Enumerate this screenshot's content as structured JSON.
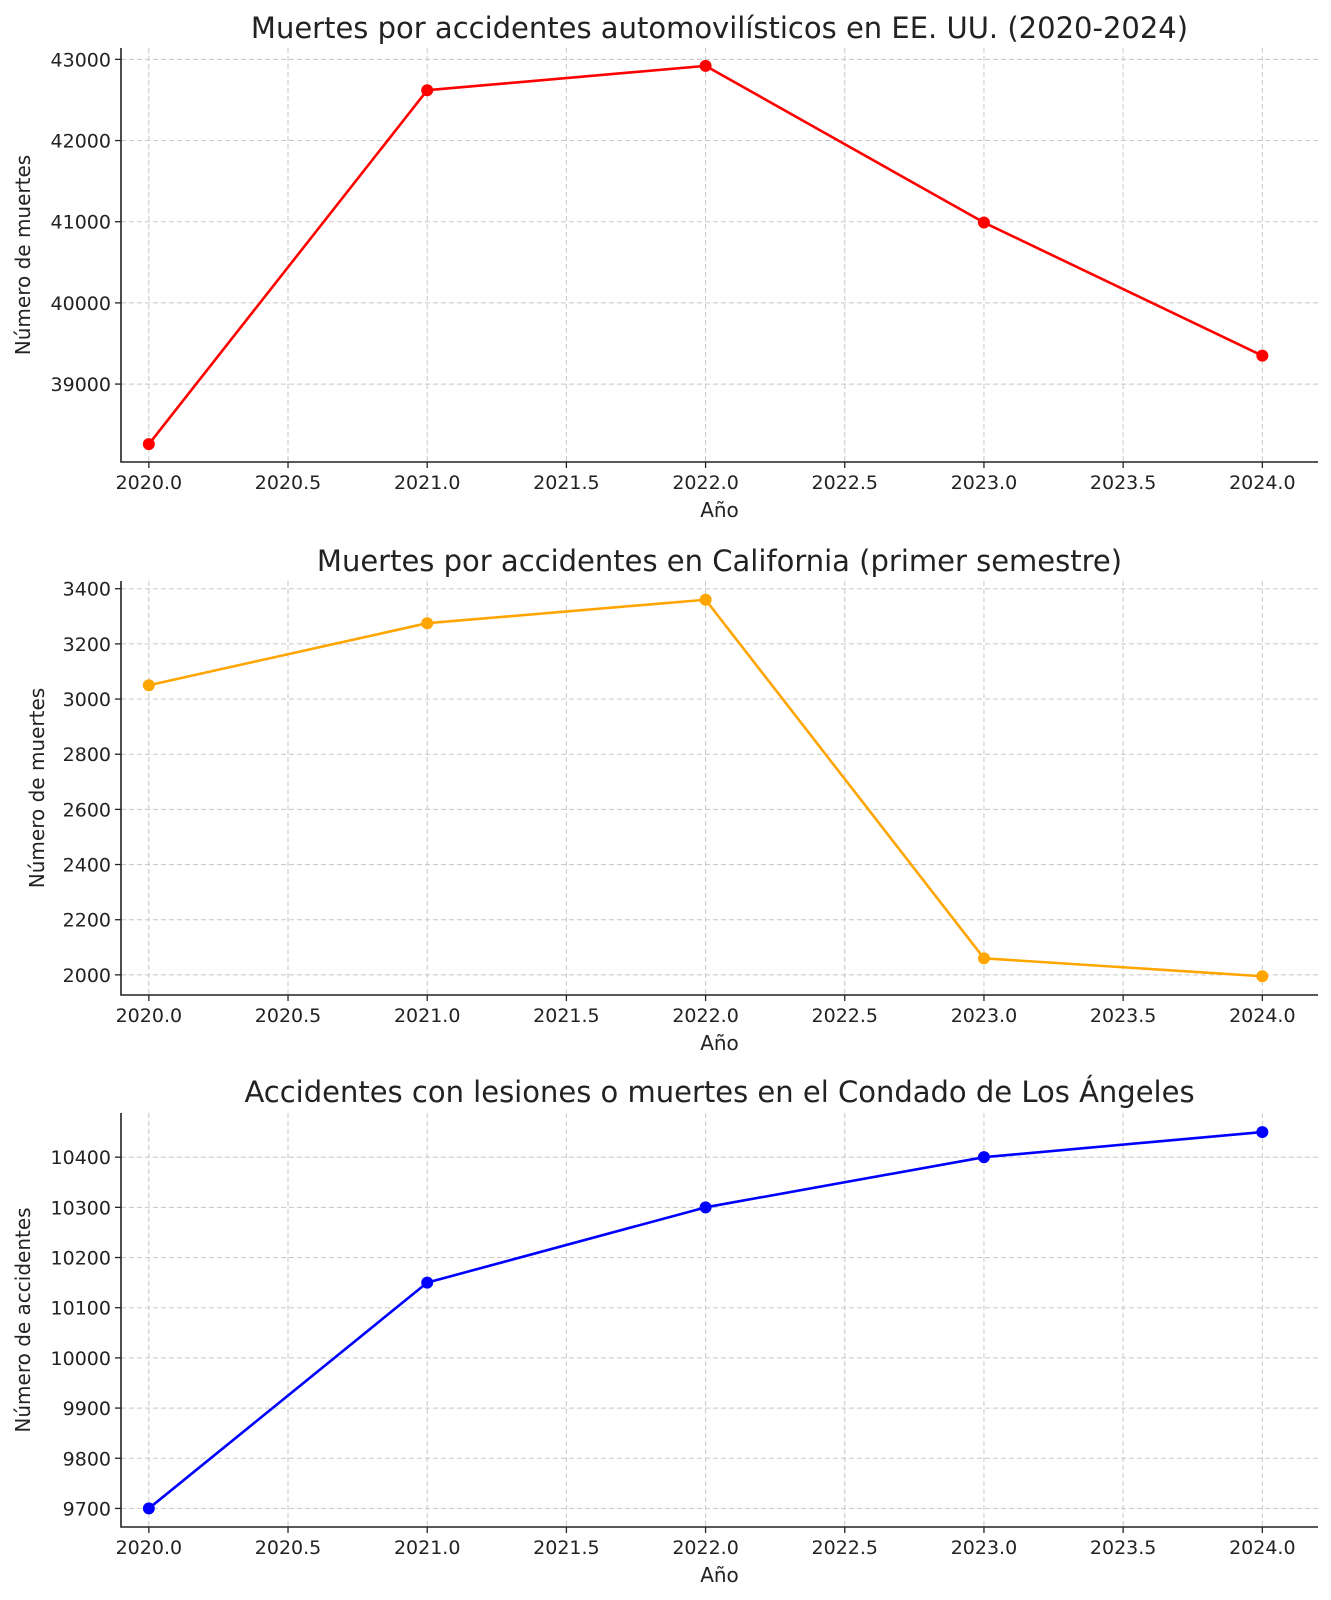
{
  "chart_data": [
    {
      "type": "line",
      "title": "Muertes por accidentes automovilísticos en EE. UU. (2020-2024)",
      "xlabel": "Año",
      "ylabel": "Número de muertes",
      "x": [
        2020,
        2021,
        2022,
        2023,
        2024
      ],
      "series": [
        {
          "values": [
            38260,
            42620,
            42920,
            40990,
            39350
          ],
          "color": "#ff0000"
        }
      ],
      "xticks": [
        "2020.0",
        "2020.5",
        "2021.0",
        "2021.5",
        "2022.0",
        "2022.5",
        "2023.0",
        "2023.5",
        "2024.0"
      ],
      "yticks": [
        39000,
        40000,
        41000,
        42000,
        43000
      ],
      "xlim": [
        2019.9,
        2024.2
      ],
      "ylim": [
        38040,
        43140
      ],
      "grid": true
    },
    {
      "type": "line",
      "title": "Muertes por accidentes en California (primer semestre)",
      "xlabel": "Año",
      "ylabel": "Número de muertes",
      "x": [
        2020,
        2021,
        2022,
        2023,
        2024
      ],
      "series": [
        {
          "values": [
            3050,
            3275,
            3360,
            2060,
            1995
          ],
          "color": "#ffa500"
        }
      ],
      "xticks": [
        "2020.0",
        "2020.5",
        "2021.0",
        "2021.5",
        "2022.0",
        "2022.5",
        "2023.0",
        "2023.5",
        "2024.0"
      ],
      "yticks": [
        2000,
        2200,
        2400,
        2600,
        2800,
        3000,
        3200,
        3400
      ],
      "xlim": [
        2019.9,
        2024.2
      ],
      "ylim": [
        1927,
        3428
      ],
      "grid": true
    },
    {
      "type": "line",
      "title": "Accidentes con lesiones o muertes en el Condado de Los Ángeles",
      "xlabel": "Año",
      "ylabel": "Número de accidentes",
      "x": [
        2020,
        2021,
        2022,
        2023,
        2024
      ],
      "series": [
        {
          "values": [
            9700,
            10150,
            10300,
            10400,
            10450
          ],
          "color": "#0000ff"
        }
      ],
      "xticks": [
        "2020.0",
        "2020.5",
        "2021.0",
        "2021.5",
        "2022.0",
        "2022.5",
        "2023.0",
        "2023.5",
        "2024.0"
      ],
      "yticks": [
        9700,
        9800,
        9900,
        10000,
        10100,
        10200,
        10300,
        10400
      ],
      "xlim": [
        2019.9,
        2024.2
      ],
      "ylim": [
        9663,
        10488
      ],
      "grid": true
    }
  ]
}
